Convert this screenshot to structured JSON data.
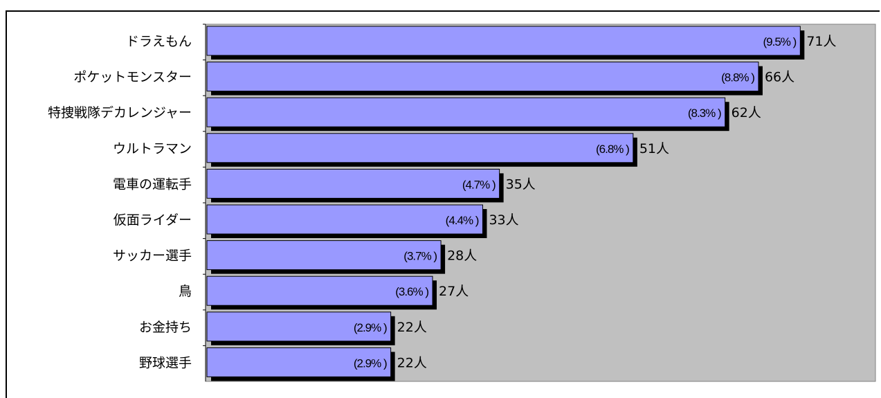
{
  "chart_data": {
    "type": "bar",
    "orientation": "horizontal",
    "categories": [
      "ドラえもん",
      "ポケットモンスター",
      "特捜戦隊デカレンジャー",
      "ウルトラマン",
      "電車の運転手",
      "仮面ライダー",
      "サッカー選手",
      "鳥",
      "お金持ち",
      "野球選手"
    ],
    "values": [
      71,
      66,
      62,
      51,
      35,
      33,
      28,
      27,
      22,
      22
    ],
    "percent_labels": [
      "(9.5% )",
      "(8.8% )",
      "(8.3% )",
      "(6.8% )",
      "(4.7% )",
      "(4.4% )",
      "(3.7% )",
      "(3.6% )",
      "(2.9% )",
      "(2.9% )"
    ],
    "count_labels": [
      "71人",
      "66人",
      "62人",
      "51人",
      "35人",
      "33人",
      "28人",
      "27人",
      "22人",
      "22人"
    ],
    "xlim": [
      0,
      80
    ],
    "grid": false,
    "legend": "none",
    "colors": {
      "bar_fill": "#9999ff",
      "bar_shadow": "#000000",
      "plot_background": "#c0c0c0",
      "plot_border": "#808080"
    }
  }
}
